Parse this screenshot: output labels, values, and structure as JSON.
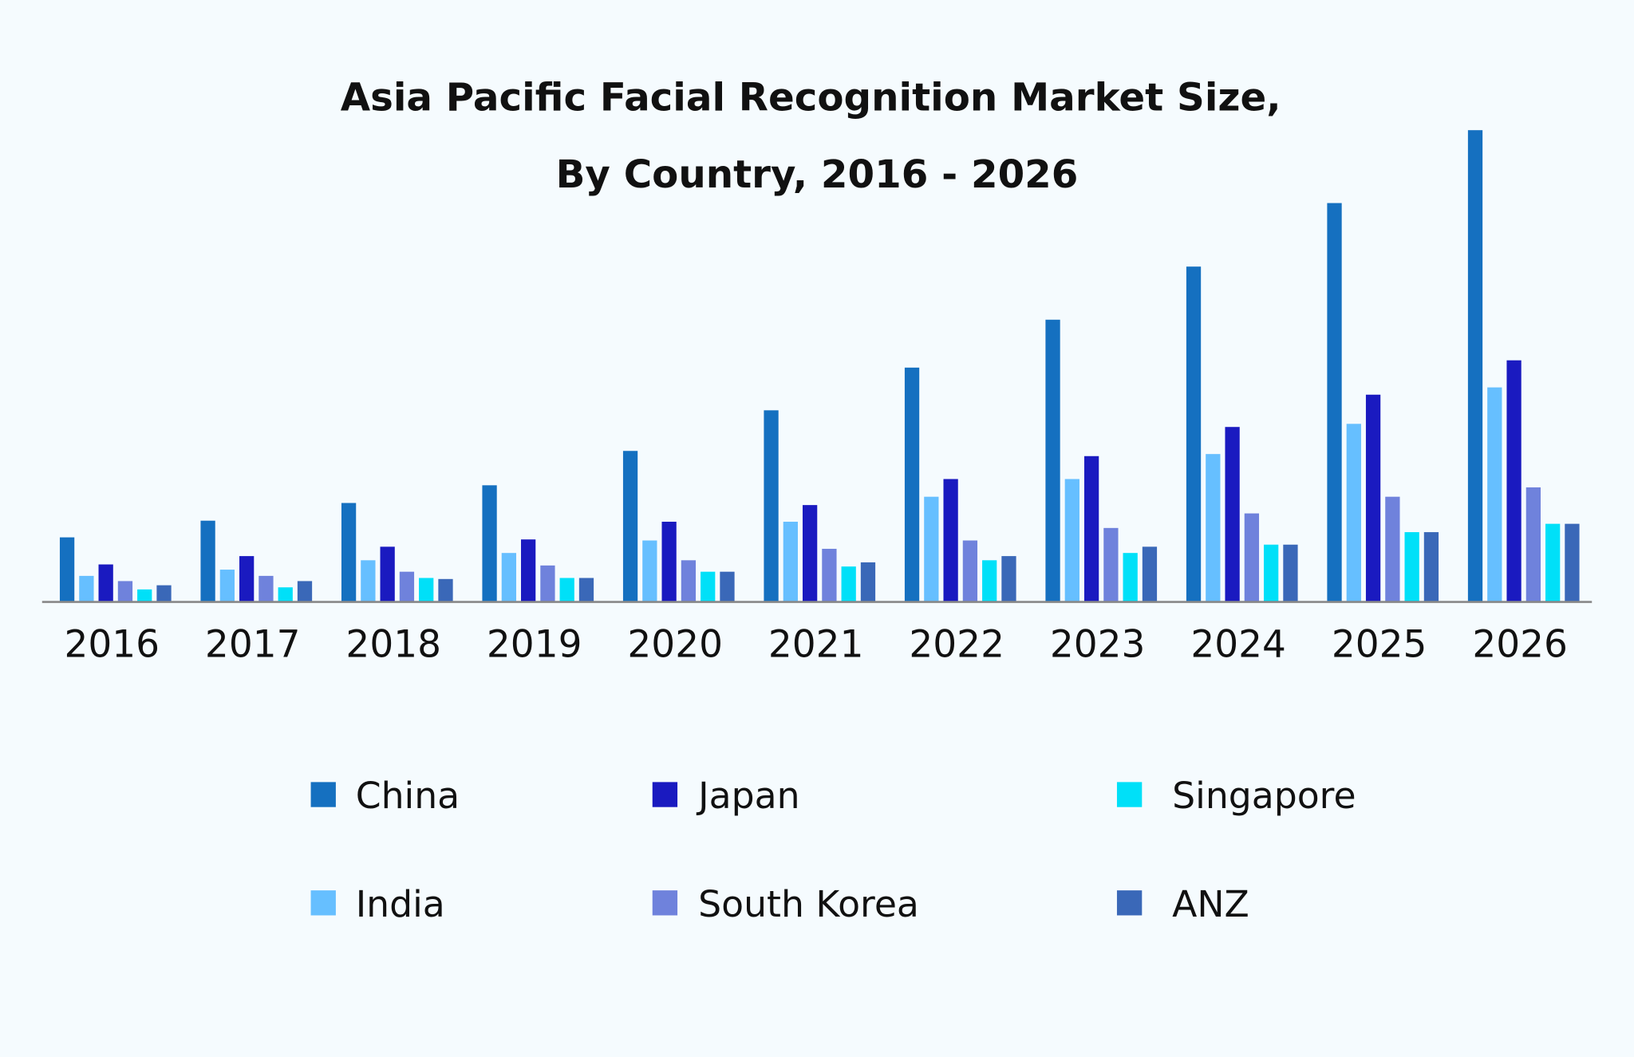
{
  "chart_data": {
    "type": "bar",
    "title": "Asia Pacific Facial Recognition Market Size,",
    "subtitle": "By Country, 2016 - 2026",
    "xlabel": "",
    "ylabel": "",
    "ylim": [
      0,
      480
    ],
    "grid": false,
    "legend_position": "bottom",
    "categories": [
      "2016",
      "2017",
      "2018",
      "2019",
      "2020",
      "2021",
      "2022",
      "2023",
      "2024",
      "2025",
      "2026"
    ],
    "series": [
      {
        "name": "China",
        "color": "#1570c0",
        "values": [
          62,
          78,
          95,
          112,
          145,
          184,
          225,
          271,
          322,
          383,
          453
        ]
      },
      {
        "name": "India",
        "color": "#66bfff",
        "values": [
          25,
          31,
          40,
          47,
          59,
          77,
          101,
          118,
          142,
          171,
          206
        ]
      },
      {
        "name": "Japan",
        "color": "#1a1ac0",
        "values": [
          36,
          44,
          53,
          60,
          77,
          93,
          118,
          140,
          168,
          199,
          232
        ]
      },
      {
        "name": "South Korea",
        "color": "#6f82dc",
        "values": [
          20,
          25,
          29,
          35,
          40,
          51,
          59,
          71,
          85,
          101,
          110
        ]
      },
      {
        "name": "Singapore",
        "color": "#00e0f8",
        "values": [
          12,
          14,
          23,
          23,
          29,
          34,
          40,
          47,
          55,
          67,
          75
        ]
      },
      {
        "name": "ANZ",
        "color": "#3a68b8",
        "values": [
          16,
          20,
          22,
          23,
          29,
          38,
          44,
          53,
          55,
          67,
          75
        ]
      }
    ],
    "note_values": "relative scale; no value axis printed"
  }
}
